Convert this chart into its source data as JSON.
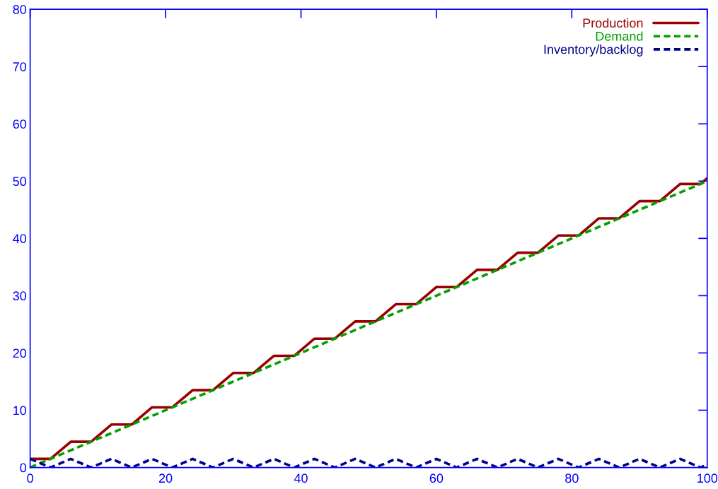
{
  "chart_data": {
    "type": "line",
    "xlim": [
      0,
      100
    ],
    "ylim": [
      0,
      80
    ],
    "xticks": [
      0,
      20,
      40,
      60,
      80,
      100
    ],
    "yticks": [
      0,
      10,
      20,
      30,
      40,
      50,
      60,
      70,
      80
    ],
    "grid": false,
    "legend": "top right",
    "marker": "none",
    "series": [
      {
        "name": "Production",
        "color": "#990000",
        "line_style": "solid",
        "x": [
          0,
          3,
          6,
          9,
          12,
          15,
          18,
          21,
          24,
          27,
          30,
          33,
          36,
          39,
          42,
          45,
          48,
          51,
          54,
          57,
          60,
          63,
          66,
          69,
          72,
          75,
          78,
          81,
          84,
          87,
          90,
          93,
          96,
          99,
          100
        ],
        "values": [
          1.5,
          1.5,
          4.5,
          4.5,
          7.5,
          7.5,
          10.5,
          10.5,
          13.5,
          13.5,
          16.5,
          16.5,
          19.5,
          19.5,
          22.5,
          22.5,
          25.5,
          25.5,
          28.5,
          28.5,
          31.5,
          31.5,
          34.5,
          34.5,
          37.5,
          37.5,
          40.5,
          40.5,
          43.5,
          43.5,
          46.5,
          46.5,
          49.5,
          49.5,
          50.5
        ]
      },
      {
        "name": "Demand",
        "color": "#00a000",
        "line_style": "dashed",
        "x": [
          0,
          100
        ],
        "values": [
          0,
          50
        ]
      },
      {
        "name": "Inventory/backlog",
        "color": "#00008b",
        "line_style": "dashed",
        "x": [
          0,
          3,
          6,
          9,
          12,
          15,
          18,
          21,
          24,
          27,
          30,
          33,
          36,
          39,
          42,
          45,
          48,
          51,
          54,
          57,
          60,
          63,
          66,
          69,
          72,
          75,
          78,
          81,
          84,
          87,
          90,
          93,
          96,
          99,
          100
        ],
        "values": [
          1.5,
          0,
          1.5,
          0,
          1.5,
          0,
          1.5,
          0,
          1.5,
          0,
          1.5,
          0,
          1.5,
          0,
          1.5,
          0,
          1.5,
          0,
          1.5,
          0,
          1.5,
          0,
          1.5,
          0,
          1.5,
          0,
          1.5,
          0,
          1.5,
          0,
          1.5,
          0,
          1.5,
          0,
          0.5
        ]
      }
    ]
  }
}
